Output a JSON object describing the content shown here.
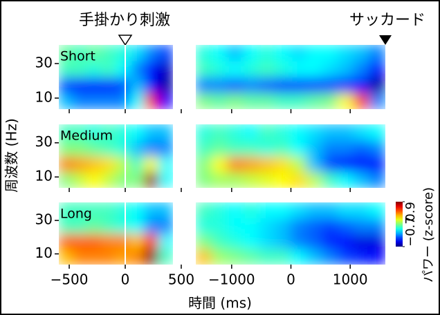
{
  "chart_data": {
    "type": "heatmap",
    "cue_title": "手掛かり刺激",
    "saccade_title": "サッカード",
    "x_label": "時間 (ms)",
    "y_label": "周波数 (Hz)",
    "colorbar_label": "パワー (z-score)",
    "xlim_left": [
      -593,
      426
    ],
    "xticks_left": [
      {
        "value": -500,
        "label": "−500"
      },
      0,
      500
    ],
    "xlim_right": [
      -1605,
      1593
    ],
    "xticks_right": [
      {
        "value": -1000,
        "label": "−1000"
      },
      0,
      1000
    ],
    "ylim": [
      3.6,
      40.8
    ],
    "yticks": [
      10,
      30
    ],
    "clim": [
      -0.7,
      0.9
    ],
    "cticks": [
      {
        "value": -0.7,
        "label": "−0.7"
      },
      0.9
    ],
    "colormap": "jet",
    "panels": [
      {
        "name": "Short",
        "cue_values": [
          [
            -0.2,
            -0.3,
            -0.3,
            -0.3,
            -0.3,
            -0.1,
            0.7,
            -0.5
          ],
          [
            -0.4,
            -0.45,
            -0.45,
            -0.45,
            -0.4,
            -0.2,
            -0.5,
            -0.65
          ],
          [
            0.0,
            0.0,
            -0.05,
            0.0,
            -0.1,
            -0.3,
            -0.5,
            -0.6
          ],
          [
            0.05,
            0.0,
            0.05,
            0.0,
            -0.05,
            -0.15,
            -0.3,
            -0.4
          ]
        ],
        "saccade_values": [
          [
            0.1,
            0.05,
            0.1,
            0.05,
            0.05,
            0.0,
            0.0,
            0.05,
            0.1,
            0.3,
            0.6,
            -0.3
          ],
          [
            -0.3,
            -0.3,
            -0.35,
            -0.3,
            -0.35,
            -0.4,
            -0.4,
            -0.4,
            -0.4,
            -0.45,
            -0.5,
            -0.65
          ],
          [
            0.0,
            -0.05,
            -0.1,
            -0.05,
            0.0,
            -0.05,
            -0.1,
            -0.1,
            -0.15,
            -0.2,
            -0.3,
            -0.5
          ],
          [
            -0.05,
            -0.1,
            -0.2,
            -0.1,
            -0.05,
            -0.1,
            -0.15,
            -0.1,
            -0.1,
            -0.15,
            -0.2,
            -0.3
          ]
        ]
      },
      {
        "name": "Medium",
        "cue_values": [
          [
            0.1,
            0.2,
            0.3,
            0.2,
            0.1,
            0.1,
            0.85,
            -0.1
          ],
          [
            0.5,
            0.45,
            0.4,
            0.35,
            0.2,
            0.0,
            0.3,
            -0.1
          ],
          [
            0.1,
            0.1,
            0.05,
            0.0,
            -0.05,
            -0.2,
            -0.3,
            -0.3
          ],
          [
            0.0,
            0.0,
            -0.05,
            0.0,
            -0.05,
            -0.1,
            -0.2,
            -0.2
          ]
        ],
        "saccade_values": [
          [
            0.1,
            0.15,
            0.15,
            0.2,
            0.25,
            0.3,
            0.35,
            0.2,
            0.0,
            -0.1,
            -0.2,
            -0.3
          ],
          [
            0.1,
            0.3,
            0.5,
            0.45,
            0.4,
            0.35,
            0.2,
            -0.2,
            -0.4,
            -0.5,
            -0.5,
            -0.5
          ],
          [
            0.0,
            0.05,
            0.0,
            0.0,
            -0.05,
            0.0,
            -0.1,
            -0.2,
            -0.3,
            -0.3,
            -0.35,
            -0.3
          ],
          [
            -0.05,
            0.0,
            -0.05,
            -0.1,
            0.0,
            -0.05,
            -0.1,
            -0.15,
            -0.2,
            -0.2,
            -0.15,
            -0.1
          ]
        ]
      },
      {
        "name": "Long",
        "cue_values": [
          [
            0.4,
            0.5,
            0.5,
            0.5,
            0.45,
            0.5,
            0.9,
            0.0
          ],
          [
            0.55,
            0.55,
            0.55,
            0.5,
            0.5,
            0.4,
            0.7,
            -0.1
          ],
          [
            0.0,
            0.0,
            0.05,
            0.0,
            -0.05,
            -0.1,
            -0.3,
            -0.3
          ],
          [
            0.0,
            0.0,
            0.0,
            0.0,
            -0.05,
            -0.1,
            -0.2,
            -0.2
          ]
        ],
        "saccade_values": [
          [
            0.4,
            0.15,
            0.1,
            0.05,
            0.0,
            0.0,
            -0.1,
            -0.2,
            -0.3,
            -0.4,
            -0.45,
            -0.5
          ],
          [
            0.1,
            0.0,
            -0.05,
            -0.1,
            -0.15,
            -0.2,
            -0.3,
            -0.35,
            -0.45,
            -0.5,
            -0.55,
            -0.55
          ],
          [
            -0.05,
            -0.05,
            -0.1,
            -0.1,
            -0.15,
            -0.2,
            -0.3,
            -0.35,
            -0.4,
            -0.35,
            -0.3,
            -0.3
          ],
          [
            0.0,
            -0.05,
            -0.1,
            -0.05,
            -0.1,
            -0.1,
            -0.15,
            -0.2,
            -0.2,
            -0.15,
            -0.15,
            -0.1
          ]
        ]
      }
    ]
  }
}
